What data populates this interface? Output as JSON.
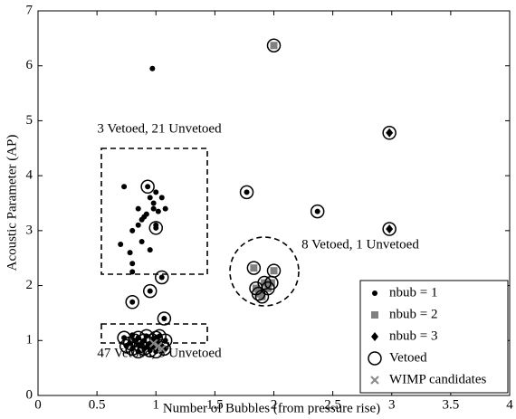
{
  "chart_data": {
    "type": "scatter",
    "xlabel": "Number of Bubbles (from pressure rise)",
    "ylabel": "Acoustic Parameter (AP)",
    "xlim": [
      0,
      4
    ],
    "ylim": [
      0,
      7
    ],
    "xticks": [
      0,
      0.5,
      1,
      1.5,
      2,
      2.5,
      3,
      3.5,
      4
    ],
    "yticks": [
      0,
      1,
      2,
      3,
      4,
      5,
      6,
      7
    ],
    "legend": "lower right",
    "annotations": [
      "3 Vetoed, 21 Unvetoed",
      "8 Vetoed, 1 Unvetoed",
      "47 Vetoed, 3 Unvetoed"
    ],
    "series": [
      {
        "name": "nbub = 1",
        "color": "#000000",
        "marker": "dot",
        "x": [
          0.73,
          0.7,
          0.78,
          0.8,
          0.8,
          0.8,
          0.85,
          0.85,
          0.88,
          0.9,
          0.92,
          0.93,
          0.95,
          0.95,
          0.98,
          1.0,
          1.0,
          1.02,
          1.05,
          1.08,
          1.05,
          0.88,
          1.0,
          0.98,
          0.97,
          0.8,
          0.95,
          1.07,
          1.77,
          2.37,
          0.73,
          0.75,
          0.78,
          0.8,
          0.82,
          0.85,
          0.87,
          0.88,
          0.9,
          0.9,
          0.92,
          0.93,
          0.95,
          0.97,
          0.98,
          1.0,
          1.02,
          1.03,
          1.05,
          1.07,
          0.85,
          0.95,
          1.0,
          0.8,
          1.08
        ],
        "y": [
          3.8,
          2.75,
          2.6,
          2.4,
          2.25,
          3.0,
          3.1,
          3.4,
          2.8,
          3.25,
          3.3,
          3.8,
          2.65,
          3.6,
          3.5,
          3.7,
          3.05,
          3.35,
          3.6,
          3.4,
          2.15,
          3.2,
          3.1,
          3.4,
          5.95,
          1.7,
          1.9,
          1.4,
          3.7,
          3.35,
          1.05,
          0.9,
          0.95,
          0.85,
          1.0,
          1.05,
          0.9,
          0.95,
          1.0,
          0.85,
          1.08,
          0.9,
          0.95,
          1.0,
          0.88,
          1.05,
          0.95,
          1.08,
          0.9,
          0.85,
          0.8,
          0.82,
          0.8,
          1.1,
          1.0
        ]
      },
      {
        "name": "nbub = 2",
        "color": "#808080",
        "marker": "square",
        "x": [
          2.0,
          1.83,
          1.85,
          1.87,
          1.9,
          1.92,
          1.95,
          2.0,
          1.98,
          1.88
        ],
        "y": [
          6.37,
          2.32,
          1.95,
          1.85,
          1.8,
          2.05,
          1.95,
          2.27,
          2.05,
          1.9
        ]
      },
      {
        "name": "nbub = 3",
        "color": "#000000",
        "marker": "diamond",
        "x": [
          2.98,
          2.98
        ],
        "y": [
          4.78,
          3.03
        ]
      },
      {
        "name": "Vetoed",
        "color": "#000000",
        "marker": "circle",
        "x": [
          0.93,
          1.0,
          1.05,
          0.8,
          0.95,
          1.07,
          1.77,
          2.37,
          2.0,
          2.98,
          2.98,
          1.83,
          1.85,
          1.87,
          1.9,
          1.92,
          1.95,
          2.0,
          1.98,
          0.73,
          0.75,
          0.78,
          0.8,
          0.82,
          0.85,
          0.87,
          0.9,
          0.92,
          0.95,
          0.97,
          1.0,
          1.03,
          1.05,
          1.07,
          0.85,
          0.95,
          1.08,
          0.9,
          1.0
        ],
        "y": [
          3.8,
          3.05,
          2.15,
          1.7,
          1.9,
          1.4,
          3.7,
          3.35,
          6.37,
          4.78,
          3.03,
          2.32,
          1.95,
          1.85,
          1.8,
          2.05,
          1.95,
          2.27,
          2.05,
          1.05,
          0.9,
          0.95,
          0.85,
          1.0,
          1.05,
          0.9,
          1.0,
          1.08,
          0.95,
          1.0,
          1.05,
          1.08,
          0.9,
          0.85,
          0.8,
          0.82,
          1.0,
          0.85,
          0.8
        ]
      },
      {
        "name": "WIMP candidates",
        "color": "#888888",
        "marker": "x",
        "x": [
          1.02,
          1.05,
          0.98
        ],
        "y": [
          0.9,
          0.85,
          0.95
        ]
      }
    ]
  }
}
